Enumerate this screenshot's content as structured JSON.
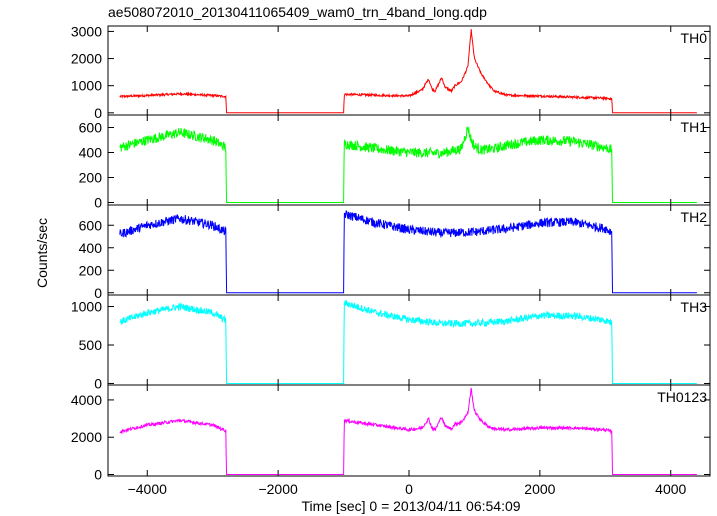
{
  "chart_data": {
    "type": "line",
    "title": "ae508072010_20130411065409_wam0_trn_4band_long.qdp",
    "xlabel": "Time [sec] 0 = 2013/04/11 06:54:09",
    "ylabel": "Counts/sec",
    "xlim": [
      -4600,
      4600
    ],
    "x_ticks": [
      -4000,
      -2000,
      0,
      2000,
      4000
    ],
    "x_tick_labels": [
      "−4000",
      "−2000",
      "0",
      "2000",
      "4000"
    ],
    "panels": [
      {
        "label": "TH0",
        "color": "#ff0000",
        "ylim": [
          -80,
          3200
        ],
        "y_ticks": [
          0,
          1000,
          2000,
          3000
        ],
        "y_tick_labels": [
          "0",
          "1000",
          "2000",
          "3000"
        ],
        "x": [
          -4420,
          -4000,
          -3500,
          -3000,
          -2800,
          -2790,
          -1000,
          -990,
          -500,
          0,
          200,
          300,
          350,
          400,
          500,
          550,
          650,
          700,
          800,
          900,
          950,
          1000,
          1100,
          1200,
          1300,
          1500,
          2000,
          2500,
          3000,
          3100,
          3110,
          4400
        ],
        "values": [
          600,
          640,
          700,
          640,
          600,
          0,
          0,
          680,
          650,
          620,
          850,
          1250,
          900,
          800,
          1300,
          950,
          800,
          1000,
          1150,
          1700,
          3050,
          2000,
          1450,
          1100,
          800,
          650,
          620,
          580,
          540,
          520,
          0,
          0
        ],
        "noise": 40
      },
      {
        "label": "TH1",
        "color": "#00ff00",
        "ylim": [
          -20,
          700
        ],
        "y_ticks": [
          0,
          200,
          400,
          600
        ],
        "y_tick_labels": [
          "0",
          "200",
          "400",
          "600"
        ],
        "x": [
          -4420,
          -4000,
          -3500,
          -3000,
          -2800,
          -2790,
          -1000,
          -990,
          -500,
          0,
          500,
          800,
          900,
          950,
          1000,
          1100,
          1300,
          1500,
          2000,
          2500,
          3000,
          3100,
          3110,
          4400
        ],
        "values": [
          440,
          500,
          560,
          500,
          440,
          0,
          0,
          470,
          430,
          400,
          395,
          430,
          600,
          500,
          450,
          420,
          430,
          460,
          500,
          490,
          440,
          420,
          0,
          0
        ],
        "noise": 40
      },
      {
        "label": "TH2",
        "color": "#0000ff",
        "ylim": [
          -20,
          780
        ],
        "y_ticks": [
          0,
          200,
          400,
          600
        ],
        "y_tick_labels": [
          "0",
          "200",
          "400",
          "600"
        ],
        "x": [
          -4420,
          -4000,
          -3500,
          -3000,
          -2800,
          -2790,
          -1000,
          -990,
          -500,
          0,
          500,
          1000,
          1500,
          2000,
          2500,
          3000,
          3100,
          3110,
          4400
        ],
        "values": [
          520,
          600,
          660,
          600,
          540,
          0,
          0,
          700,
          620,
          560,
          530,
          540,
          570,
          620,
          630,
          570,
          540,
          0,
          0
        ],
        "noise": 40
      },
      {
        "label": "TH3",
        "color": "#00ffff",
        "ylim": [
          -20,
          1150
        ],
        "y_ticks": [
          0,
          500,
          1000
        ],
        "y_tick_labels": [
          "0",
          "500",
          "1000"
        ],
        "x": [
          -4420,
          -4000,
          -3500,
          -3000,
          -2800,
          -2790,
          -1000,
          -990,
          -500,
          0,
          500,
          1000,
          1500,
          2000,
          2500,
          3000,
          3100,
          3110,
          4400
        ],
        "values": [
          800,
          920,
          1000,
          920,
          820,
          0,
          0,
          1050,
          920,
          830,
          780,
          780,
          810,
          880,
          880,
          820,
          790,
          0,
          0
        ],
        "noise": 45
      },
      {
        "label": "TH0123",
        "color": "#ff00ff",
        "ylim": [
          -80,
          4800
        ],
        "y_ticks": [
          0,
          2000,
          4000
        ],
        "y_tick_labels": [
          "0",
          "2000",
          "4000"
        ],
        "x": [
          -4420,
          -4000,
          -3500,
          -3000,
          -2800,
          -2790,
          -1000,
          -990,
          -500,
          0,
          200,
          300,
          350,
          400,
          500,
          550,
          650,
          700,
          800,
          900,
          950,
          1000,
          1100,
          1200,
          1300,
          1500,
          2000,
          2500,
          3000,
          3100,
          3110,
          4400
        ],
        "values": [
          2300,
          2650,
          2900,
          2650,
          2350,
          0,
          0,
          2900,
          2650,
          2400,
          2500,
          3000,
          2500,
          2400,
          3100,
          2600,
          2450,
          2700,
          2800,
          3300,
          4600,
          3400,
          2900,
          2600,
          2450,
          2400,
          2500,
          2500,
          2400,
          2300,
          0,
          0
        ],
        "noise": 80
      }
    ]
  }
}
